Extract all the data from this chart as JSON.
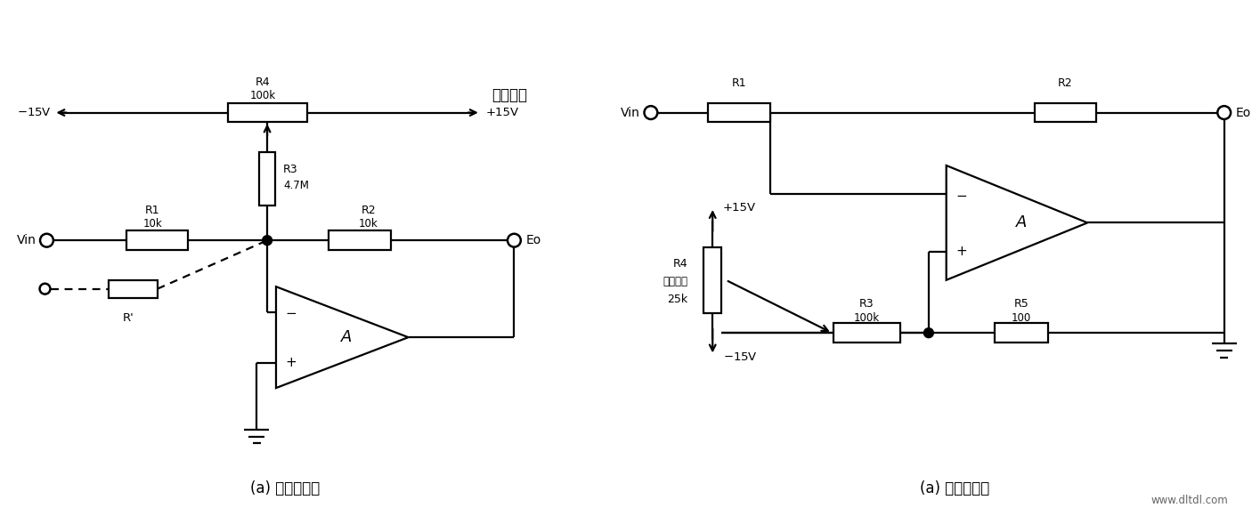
{
  "bg_color": "#ffffff",
  "line_color": "#000000",
  "fig_width": 14.06,
  "fig_height": 5.8,
  "caption_left": "(a) 反相端调零",
  "caption_right": "(a) 同相端调零",
  "website": "www.dltdl.com"
}
